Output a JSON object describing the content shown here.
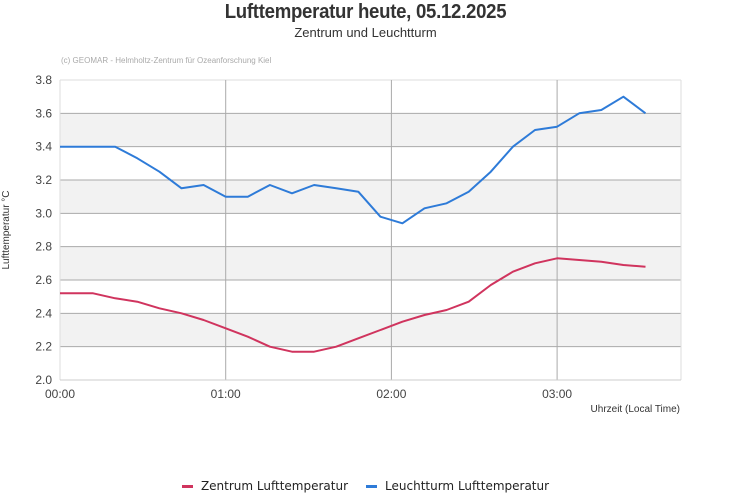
{
  "header": {
    "title": "Lufttemperatur heute, 05.12.2025",
    "subtitle": "Zentrum und Leuchtturm",
    "credit": "(c) GEOMAR - Helmholtz-Zentrum für Ozeanforschung Kiel"
  },
  "axes": {
    "ylabel": "Lufttemperatur °C",
    "xlabel": "Uhrzeit (Local Time)",
    "yticks": [
      "2.0",
      "2.2",
      "2.4",
      "2.6",
      "2.8",
      "3.0",
      "3.2",
      "3.4",
      "3.6",
      "3.8"
    ],
    "xticks": [
      "00:00",
      "01:00",
      "02:00",
      "03:00"
    ]
  },
  "legend": {
    "items": [
      {
        "label": "Zentrum Lufttemperatur",
        "color": "#d0345e"
      },
      {
        "label": "Leuchtturm Lufttemperatur",
        "color": "#2e7bd8"
      }
    ]
  },
  "chart_data": {
    "type": "line",
    "title": "Lufttemperatur heute, 05.12.2025",
    "subtitle": "Zentrum und Leuchtturm",
    "xlabel": "Uhrzeit (Local Time)",
    "ylabel": "Lufttemperatur °C",
    "ylim": [
      2.0,
      3.8
    ],
    "xlim": [
      "00:00",
      "03:45"
    ],
    "grid": true,
    "legend_position": "bottom",
    "series": [
      {
        "name": "Zentrum Lufttemperatur",
        "color": "#d0345e",
        "x": [
          "00:00",
          "00:12",
          "00:20",
          "00:28",
          "00:36",
          "00:44",
          "00:52",
          "01:00",
          "01:08",
          "01:16",
          "01:24",
          "01:32",
          "01:40",
          "01:48",
          "01:56",
          "02:04",
          "02:12",
          "02:20",
          "02:28",
          "02:36",
          "02:44",
          "02:52",
          "03:00",
          "03:08",
          "03:16",
          "03:24",
          "03:32"
        ],
        "values": [
          2.52,
          2.52,
          2.49,
          2.47,
          2.43,
          2.4,
          2.36,
          2.31,
          2.26,
          2.2,
          2.17,
          2.17,
          2.2,
          2.25,
          2.3,
          2.35,
          2.39,
          2.42,
          2.47,
          2.57,
          2.65,
          2.7,
          2.73,
          2.72,
          2.71,
          2.69,
          2.68
        ]
      },
      {
        "name": "Leuchtturm Lufttemperatur",
        "color": "#2e7bd8",
        "x": [
          "00:00",
          "00:20",
          "00:28",
          "00:36",
          "00:44",
          "00:52",
          "01:00",
          "01:08",
          "01:16",
          "01:24",
          "01:32",
          "01:40",
          "01:48",
          "01:56",
          "02:04",
          "02:12",
          "02:20",
          "02:28",
          "02:36",
          "02:44",
          "02:52",
          "03:00",
          "03:08",
          "03:16",
          "03:24",
          "03:32"
        ],
        "values": [
          3.4,
          3.4,
          3.33,
          3.25,
          3.15,
          3.17,
          3.1,
          3.1,
          3.17,
          3.12,
          3.17,
          3.15,
          3.13,
          2.98,
          2.94,
          3.03,
          3.06,
          3.13,
          3.25,
          3.4,
          3.5,
          3.52,
          3.6,
          3.62,
          3.7,
          3.6
        ]
      }
    ]
  }
}
